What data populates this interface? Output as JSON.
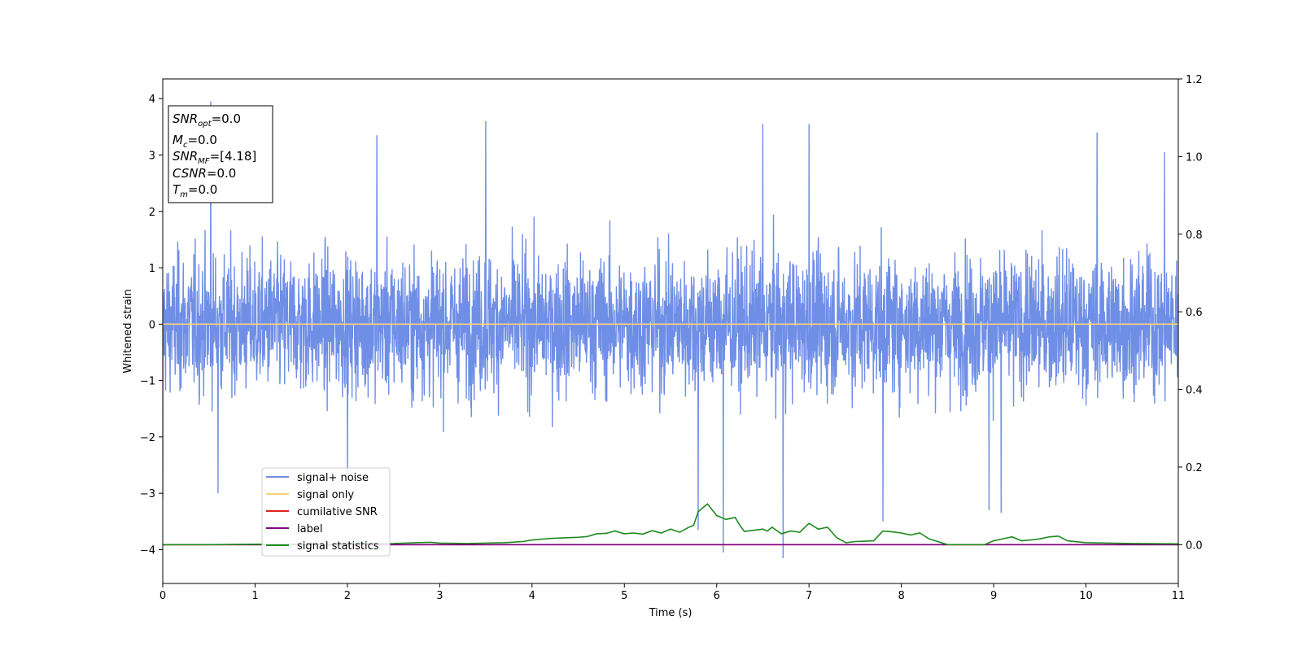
{
  "chart_data": {
    "type": "line",
    "xlabel": "Time (s)",
    "ylabel": "Whitened strain",
    "xlim": [
      0,
      11
    ],
    "ylim": [
      -4.6,
      4.35
    ],
    "y2lim": [
      -0.1,
      1.2
    ],
    "x_ticks": [
      0,
      1,
      2,
      3,
      4,
      5,
      6,
      7,
      8,
      9,
      10,
      11
    ],
    "y_ticks": [
      4,
      3,
      2,
      1,
      0,
      -1,
      -2,
      -3,
      -4
    ],
    "y_tick_labels": [
      "4",
      "3",
      "2",
      "1",
      "0",
      "−1",
      "−2",
      "−3",
      "−4"
    ],
    "y2_ticks": [
      1.2,
      1.0,
      0.8,
      0.6,
      0.4,
      0.2,
      0.0
    ],
    "y2_tick_labels": [
      "1.2",
      "1.0",
      "0.8",
      "0.6",
      "0.4",
      "0.2",
      "0.0"
    ],
    "grid": false,
    "legend_position": "lower-left",
    "series": [
      {
        "name": "signal+ noise",
        "color": "#6f8ee6",
        "axis": "left",
        "kind": "noise",
        "envelope_typical": [
          -2.2,
          2.3
        ],
        "x_peaks": [
          0.0,
          0.52,
          0.6,
          2.0,
          2.32,
          3.5,
          5.8,
          6.07,
          6.5,
          6.72,
          7.0,
          7.8,
          8.95,
          9.08,
          10.12,
          10.85
        ],
        "y_peaks": [
          -3.1,
          3.95,
          -3.0,
          -2.9,
          3.35,
          3.6,
          -3.65,
          -4.05,
          3.55,
          -4.15,
          3.55,
          -3.5,
          -3.3,
          -3.35,
          3.4,
          3.05
        ]
      },
      {
        "name": "signal only",
        "color": "#ffd27a",
        "axis": "left",
        "x": [
          0,
          11
        ],
        "y": [
          0,
          0
        ]
      },
      {
        "name": "cumilative SNR",
        "color": "#e02020",
        "axis": "right",
        "x": [
          0,
          11
        ],
        "y": [
          0,
          0
        ]
      },
      {
        "name": "label",
        "color": "#800080",
        "axis": "right",
        "x": [
          0,
          11
        ],
        "y": [
          0,
          0
        ]
      },
      {
        "name": "signal statistics",
        "color": "#1e8a1e",
        "axis": "right",
        "x": [
          0,
          0.5,
          1.0,
          1.5,
          2.0,
          2.5,
          2.9,
          3.0,
          3.3,
          3.7,
          3.9,
          4.0,
          4.2,
          4.4,
          4.5,
          4.6,
          4.7,
          4.8,
          4.9,
          5.0,
          5.1,
          5.2,
          5.3,
          5.4,
          5.5,
          5.6,
          5.7,
          5.75,
          5.8,
          5.9,
          6.0,
          6.1,
          6.2,
          6.25,
          6.3,
          6.4,
          6.5,
          6.55,
          6.6,
          6.7,
          6.8,
          6.9,
          7.0,
          7.1,
          7.2,
          7.3,
          7.4,
          7.5,
          7.6,
          7.7,
          7.8,
          7.9,
          8.0,
          8.1,
          8.2,
          8.3,
          8.5,
          8.9,
          9.0,
          9.1,
          9.2,
          9.3,
          9.4,
          9.5,
          9.6,
          9.7,
          9.8,
          10.0,
          10.5,
          11.0
        ],
        "y": [
          0.0,
          0.0,
          0.001,
          0.001,
          0.002,
          0.003,
          0.006,
          0.004,
          0.003,
          0.005,
          0.008,
          0.012,
          0.016,
          0.018,
          0.019,
          0.021,
          0.028,
          0.029,
          0.035,
          0.028,
          0.03,
          0.027,
          0.036,
          0.03,
          0.04,
          0.032,
          0.045,
          0.05,
          0.085,
          0.105,
          0.075,
          0.065,
          0.07,
          0.05,
          0.034,
          0.037,
          0.04,
          0.035,
          0.045,
          0.028,
          0.035,
          0.032,
          0.055,
          0.04,
          0.045,
          0.018,
          0.005,
          0.008,
          0.009,
          0.01,
          0.035,
          0.033,
          0.03,
          0.025,
          0.03,
          0.015,
          0.0,
          0.0,
          0.01,
          0.015,
          0.02,
          0.01,
          0.012,
          0.015,
          0.02,
          0.022,
          0.01,
          0.005,
          0.003,
          0.002
        ]
      }
    ],
    "annotation_lines": [
      {
        "label": "SNR",
        "sub": "opt",
        "value": "=0.0"
      },
      {
        "label": "M",
        "sub": "c",
        "value": "=0.0"
      },
      {
        "label": "SNR",
        "sub": "MF",
        "value": "=[4.18]"
      },
      {
        "label": "CSNR",
        "sub": "",
        "value": "=0.0"
      },
      {
        "label": "T",
        "sub": "m",
        "value": "=0.0"
      }
    ]
  }
}
